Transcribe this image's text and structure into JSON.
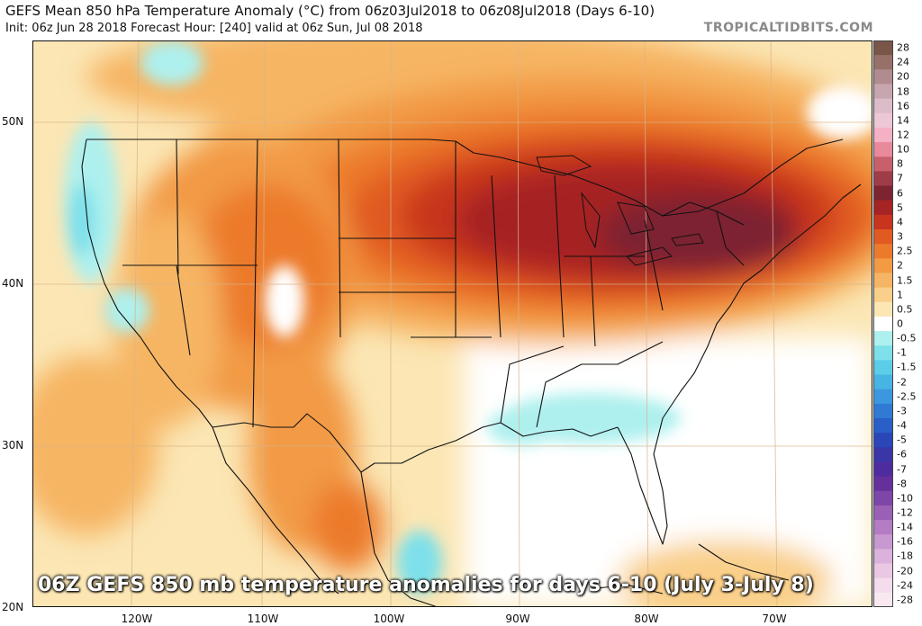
{
  "header": {
    "title": "GEFS Mean 850 hPa Temperature Anomaly (°C) from 06z03Jul2018 to 06z08Jul2018 (Days 6-10)",
    "subtitle": "Init: 06z Jun 28 2018   Forecast Hour: [240]   valid at 06z Sun, Jul 08 2018",
    "credit": "TROPICALTIDBITS.COM"
  },
  "map": {
    "lat_labels": [
      "50N",
      "40N",
      "30N",
      "20N"
    ],
    "lon_labels": [
      "120W",
      "110W",
      "100W",
      "90W",
      "80W",
      "70W"
    ]
  },
  "colorbar": {
    "labels": [
      "28",
      "24",
      "20",
      "18",
      "16",
      "14",
      "12",
      "10",
      "8",
      "7",
      "6",
      "5",
      "4",
      "3",
      "2.5",
      "2",
      "1.5",
      "1",
      "0.5",
      "0",
      "-0.5",
      "-1",
      "-1.5",
      "-2",
      "-2.5",
      "-3",
      "-4",
      "-5",
      "-6",
      "-7",
      "-8",
      "-10",
      "-12",
      "-14",
      "-16",
      "-18",
      "-20",
      "-24",
      "-28"
    ],
    "colors": [
      "#7a5648",
      "#97706a",
      "#b08c90",
      "#c8a6b0",
      "#dcbcc8",
      "#ecc8d6",
      "#f4b0c4",
      "#e88a9c",
      "#c8606c",
      "#9e3c48",
      "#7c2430",
      "#a62424",
      "#c8341e",
      "#e05a22",
      "#ec7a2c",
      "#f29a44",
      "#f6b564",
      "#f9cf8a",
      "#fbe6b4",
      "#ffffff",
      "#aef0ee",
      "#7ee0ea",
      "#5ccde8",
      "#48b4e4",
      "#3c98de",
      "#307ad4",
      "#2a5ec8",
      "#2a46b8",
      "#3a36a8",
      "#4e2c9e",
      "#66309c",
      "#7e46a8",
      "#9a60b6",
      "#b47cc4",
      "#c898d0",
      "#dab2dc",
      "#eac8e4",
      "#f4dcec",
      "#fae8f0"
    ]
  },
  "caption": "06Z GEFS 850 mb temperature anomalies for days 6-10 (July 3-July 8)"
}
